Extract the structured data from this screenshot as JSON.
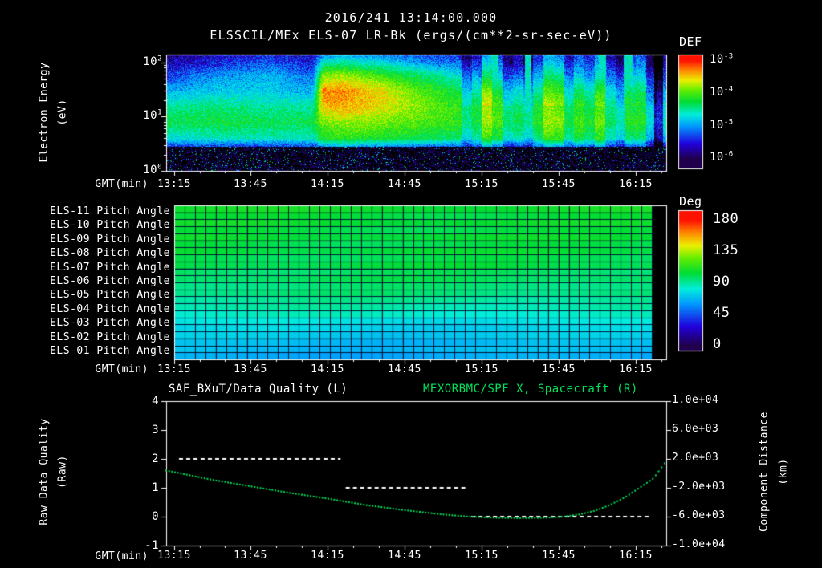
{
  "colors": {
    "background": "#000000",
    "text": "#ffffff",
    "series_green": "#00e25a",
    "grid_navy": "#001030",
    "axis_white": "#ffffff"
  },
  "colormap": [
    {
      "t": 0.0,
      "c": "#20004c"
    },
    {
      "t": 0.15,
      "c": "#2200dd"
    },
    {
      "t": 0.33,
      "c": "#0099ff"
    },
    {
      "t": 0.45,
      "c": "#00eedd"
    },
    {
      "t": 0.58,
      "c": "#00dd33"
    },
    {
      "t": 0.7,
      "c": "#66ee00"
    },
    {
      "t": 0.8,
      "c": "#eeee00"
    },
    {
      "t": 0.9,
      "c": "#ff8800"
    },
    {
      "t": 1.0,
      "c": "#ff1100"
    }
  ],
  "header": {
    "date_title": "2016/241 13:14:00.000"
  },
  "spectrogram": {
    "title": "ELSSCIL/MEx ELS-07 LR-Bk (ergs/(cm**2-sr-sec-eV))",
    "colorbar_title": "DEF",
    "ylabel_line1": "Electron Energy",
    "ylabel_line2": "(eV)",
    "xaxis_label": "GMT(min)",
    "y_ticks": [
      "10^2",
      "10^1",
      "10^0"
    ],
    "colorbar_ticks": [
      "10^-3",
      "10^-4",
      "10^-5",
      "10^-6"
    ]
  },
  "pitch": {
    "colorbar_title": "Deg",
    "xaxis_label": "GMT(min)",
    "colorbar_ticks": [
      "180",
      "135",
      "90",
      "45",
      "0"
    ]
  },
  "quality_plot": {
    "left_title": "SAF_BXuT/Data Quality (L)",
    "right_title": "MEXORBMC/SPF X, Spacecraft (R)",
    "ylabel_line1": "Raw Data Quality",
    "ylabel_line2": "(Raw)",
    "right_ylabel_line1": "Component Distance",
    "right_ylabel_line2": "(km)",
    "xaxis_label": "GMT(min)",
    "left_ticks": [
      "4",
      "3",
      "2",
      "1",
      "0",
      "-1"
    ],
    "right_ticks": [
      "1.0e+04",
      "6.0e+03",
      "2.0e+03",
      "-2.0e+03",
      "-6.0e+03",
      "-1.0e+04"
    ]
  },
  "timeline": {
    "x_ticks": [
      "13:15",
      "13:45",
      "14:15",
      "14:45",
      "15:15",
      "15:45",
      "16:15"
    ],
    "tick_minutes": [
      0,
      30,
      60,
      90,
      120,
      150,
      180
    ],
    "domain_min_rel_1315": [
      -3,
      192
    ]
  },
  "chart_data": [
    {
      "type": "heatmap",
      "name": "electron-energy-spectrogram",
      "title": "ELSSCIL/MEx ELS-07 LR-Bk",
      "units": "ergs/(cm**2-sr-sec-eV)",
      "xlabel": "GMT(min)",
      "ylabel": "Electron Energy (eV)",
      "x_ticks": [
        "13:15",
        "13:45",
        "14:15",
        "14:45",
        "15:15",
        "15:45",
        "16:15"
      ],
      "x_range_gmt": [
        "13:12",
        "16:27"
      ],
      "y_scale": "log",
      "y_range_ev": [
        1,
        140
      ],
      "colorbar": {
        "label": "DEF",
        "scale": "log",
        "tick_values": [
          0.001,
          0.0001,
          1e-05,
          1e-06
        ],
        "value_range_log10": [
          -6,
          -3
        ]
      },
      "time_nodes_min": [
        -3,
        17,
        37,
        54,
        58,
        66,
        82,
        97,
        112,
        122,
        132,
        147,
        162,
        177,
        192
      ],
      "energy_nodes_ev": [
        1,
        2,
        4,
        8,
        15,
        30,
        60,
        100,
        140
      ],
      "log10_def": [
        [
          -6.4,
          -6.4,
          -6.4,
          -6.4,
          -6.3,
          -6.3,
          -6.4,
          -6.4,
          -6.4,
          -6.4,
          -6.4,
          -6.4,
          -6.4,
          -6.4,
          -6.5
        ],
        [
          -6.1,
          -6.1,
          -6.1,
          -6.1,
          -5.8,
          -5.8,
          -5.9,
          -6.0,
          -6.0,
          -6.1,
          -6.1,
          -6.1,
          -6.1,
          -6.1,
          -6.3
        ],
        [
          -4.7,
          -4.6,
          -4.6,
          -4.6,
          -4.2,
          -4.1,
          -4.2,
          -4.3,
          -4.4,
          -4.5,
          -4.5,
          -4.5,
          -4.5,
          -4.6,
          -4.9
        ],
        [
          -4.3,
          -4.25,
          -4.3,
          -4.3,
          -3.9,
          -3.8,
          -3.9,
          -4.0,
          -4.1,
          -4.2,
          -4.2,
          -4.2,
          -4.3,
          -4.3,
          -4.6
        ],
        [
          -4.5,
          -4.4,
          -4.5,
          -4.5,
          -3.5,
          -3.4,
          -3.6,
          -3.9,
          -4.1,
          -4.2,
          -4.3,
          -4.3,
          -4.4,
          -4.4,
          -4.7
        ],
        [
          -4.9,
          -4.8,
          -4.8,
          -4.9,
          -3.3,
          -3.3,
          -3.6,
          -4.0,
          -4.3,
          -4.5,
          -4.6,
          -4.6,
          -4.7,
          -4.6,
          -5.0
        ],
        [
          -5.4,
          -5.0,
          -4.9,
          -5.2,
          -3.9,
          -3.8,
          -4.1,
          -4.4,
          -4.7,
          -5.0,
          -5.1,
          -5.0,
          -5.2,
          -5.1,
          -5.4
        ],
        [
          -5.7,
          -5.5,
          -5.2,
          -5.5,
          -4.6,
          -4.5,
          -4.7,
          -5.0,
          -5.2,
          -5.4,
          -5.5,
          -5.4,
          -5.5,
          -5.4,
          -5.7
        ],
        [
          -5.8,
          -5.6,
          -5.5,
          -5.6,
          -5.0,
          -4.9,
          -5.1,
          -5.3,
          -5.4,
          -5.6,
          -5.6,
          -5.6,
          -5.6,
          -5.6,
          -5.8
        ]
      ]
    },
    {
      "type": "heatmap",
      "name": "pitch-angle-panels",
      "xlabel": "GMT(min)",
      "x_ticks": [
        "13:15",
        "13:45",
        "14:15",
        "14:45",
        "15:15",
        "15:45",
        "16:15"
      ],
      "colorbar": {
        "label": "Deg",
        "range": [
          0,
          180
        ],
        "tick_values": [
          180,
          135,
          90,
          45,
          0
        ]
      },
      "rows": [
        {
          "label": "ELS-11 Pitch Angle",
          "mean_deg": 105
        },
        {
          "label": "ELS-10 Pitch Angle",
          "mean_deg": 104
        },
        {
          "label": "ELS-09 Pitch Angle",
          "mean_deg": 103
        },
        {
          "label": "ELS-08 Pitch Angle",
          "mean_deg": 102
        },
        {
          "label": "ELS-07 Pitch Angle",
          "mean_deg": 100
        },
        {
          "label": "ELS-06 Pitch Angle",
          "mean_deg": 97
        },
        {
          "label": "ELS-05 Pitch Angle",
          "mean_deg": 93
        },
        {
          "label": "ELS-04 Pitch Angle",
          "mean_deg": 86
        },
        {
          "label": "ELS-03 Pitch Angle",
          "mean_deg": 76
        },
        {
          "label": "ELS-02 Pitch Angle",
          "mean_deg": 70
        },
        {
          "label": "ELS-01 Pitch Angle",
          "mean_deg": 66
        }
      ]
    },
    {
      "type": "line",
      "name": "quality-and-spacecraft-x",
      "xlabel": "GMT(min)",
      "x_ticks": [
        "13:15",
        "13:45",
        "14:15",
        "14:45",
        "15:15",
        "15:45",
        "16:15"
      ],
      "left_ylim": [
        -1,
        4
      ],
      "right_ylim": [
        -10000,
        10000
      ],
      "left_series": {
        "name": "SAF_BXuT/Data Quality (L)",
        "style": "dashed-white",
        "segments": [
          {
            "start_min": 2,
            "end_min": 65,
            "value": 2
          },
          {
            "start_min": 67,
            "end_min": 114,
            "value": 1
          },
          {
            "start_min": 116,
            "end_min": 186,
            "value": 0
          }
        ]
      },
      "right_series": {
        "name": "MEXORBMC/SPF X, Spacecraft (R)",
        "style": "dotted-green",
        "x_min": [
          -3,
          15,
          30,
          45,
          60,
          75,
          90,
          105,
          115,
          125,
          135,
          145,
          152,
          158,
          164,
          170,
          176,
          182,
          187,
          192
        ],
        "km": [
          400,
          -900,
          -1800,
          -2700,
          -3500,
          -4400,
          -5100,
          -5700,
          -6000,
          -6150,
          -6200,
          -6150,
          -6000,
          -5700,
          -5200,
          -4400,
          -3300,
          -1900,
          -700,
          1700
        ]
      }
    }
  ]
}
